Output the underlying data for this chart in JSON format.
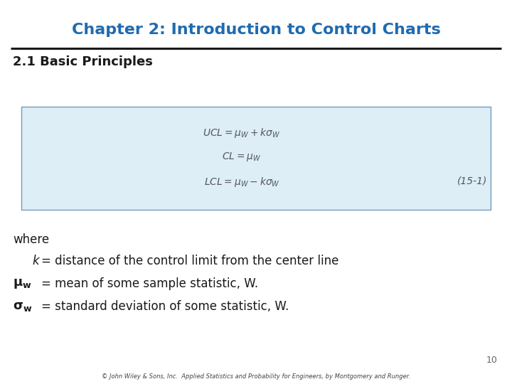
{
  "title": "Chapter 2: Introduction to Control Charts",
  "title_color": "#1F6BB0",
  "title_fontsize": 16,
  "section_title": "2.1 Basic Principles",
  "section_fontsize": 13,
  "bg_color": "#ffffff",
  "box_bg_color": "#ddeef7",
  "box_edge_color": "#7799bb",
  "eq_label": "(15-1)",
  "page_num": "10",
  "footer": "© John Wiley & Sons, Inc.  Applied Statistics and Probability for Engineers, by Montgomery and Runger.",
  "text_color": "#1a1a1a",
  "eq_color": "#555566",
  "eq_fontsize": 10,
  "text_fontsize": 12
}
